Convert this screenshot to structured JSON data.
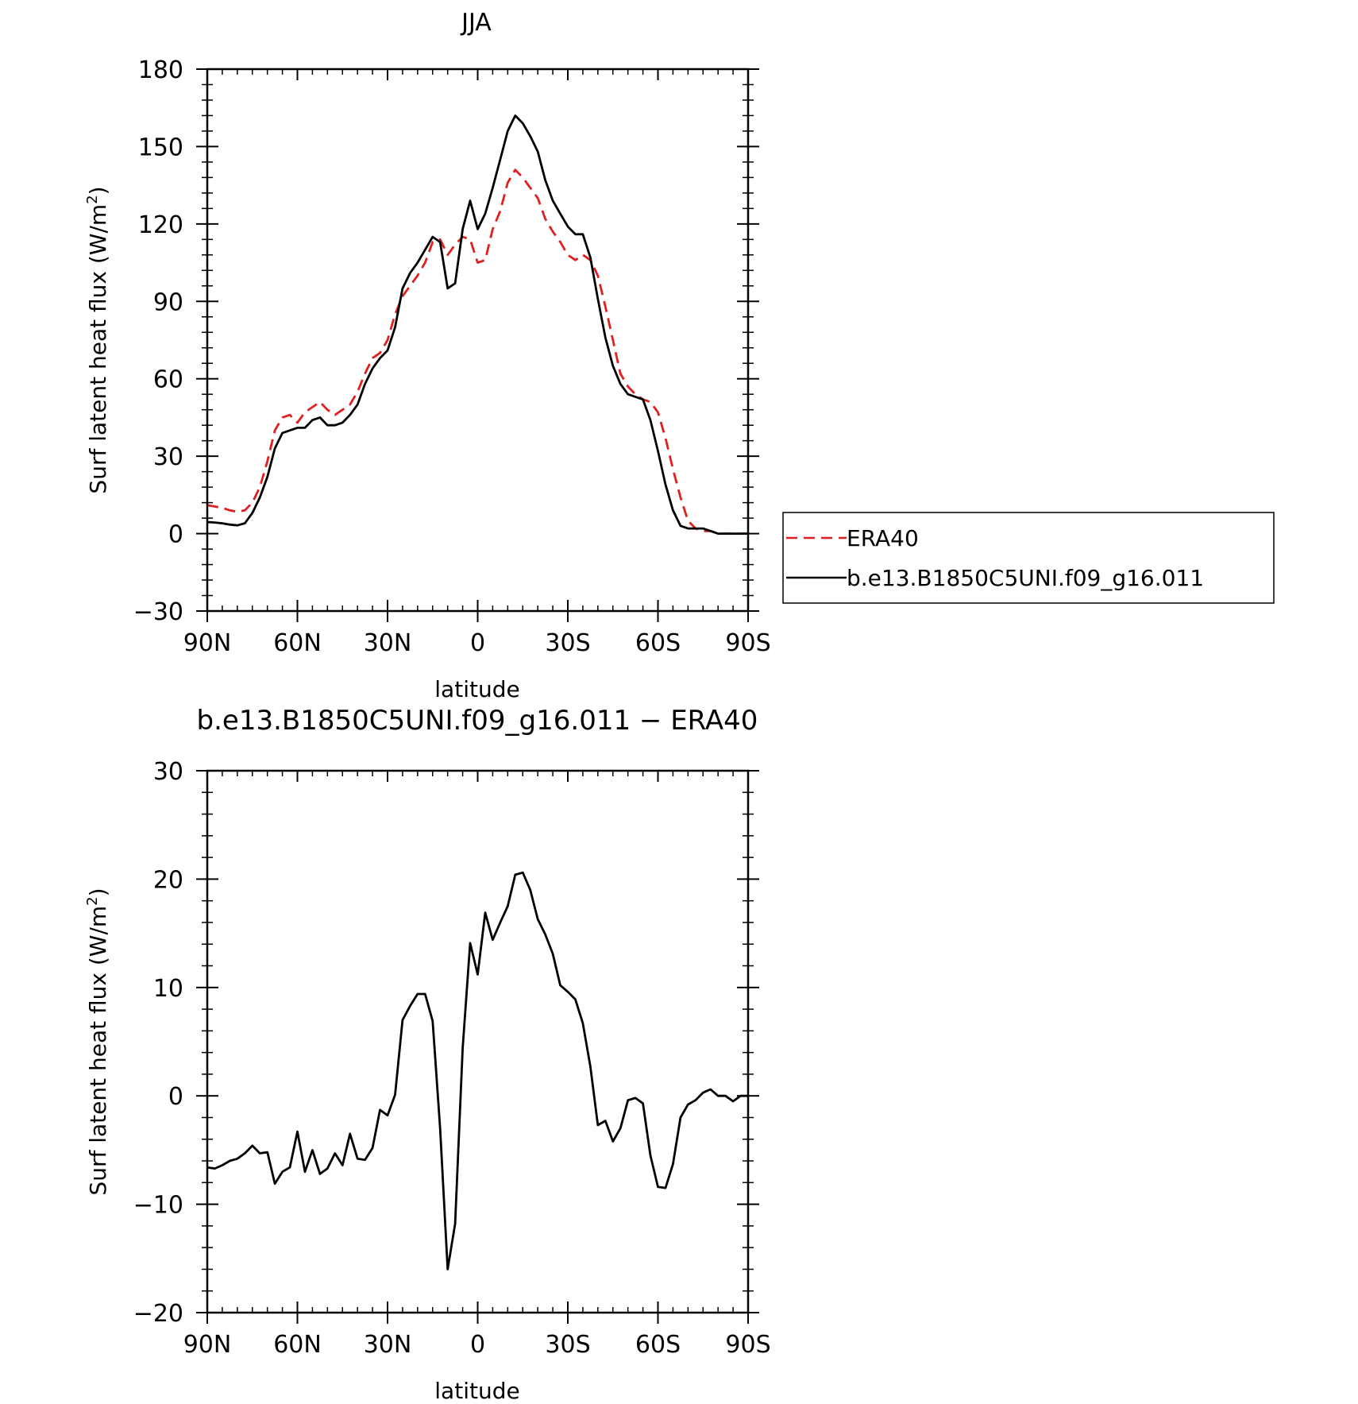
{
  "chart_data": [
    {
      "type": "line",
      "title": "JJA",
      "xlabel": "latitude",
      "ylabel": "Surf latent heat flux (W/m",
      "ylabel_sup": "2",
      "ylabel_close": ")",
      "xlim": [
        -90,
        90
      ],
      "ylim": [
        -30,
        180
      ],
      "xticks": [
        -90,
        -60,
        -30,
        0,
        30,
        60,
        90
      ],
      "xtick_labels": [
        "90N",
        "60N",
        "30N",
        "0",
        "30S",
        "60S",
        "90S"
      ],
      "yticks": [
        -30,
        0,
        30,
        60,
        90,
        120,
        150,
        180
      ],
      "ytick_labels": [
        "−30",
        "0",
        "30",
        "60",
        "90",
        "120",
        "150",
        "180"
      ],
      "grid": false,
      "legend": "right-outside",
      "series": [
        {
          "name": "ERA40",
          "color": "#e02020",
          "style": "dashed",
          "x": [
            -90,
            -87.5,
            -85,
            -82.5,
            -80,
            -77.5,
            -75,
            -72.5,
            -70,
            -67.5,
            -65,
            -62.5,
            -60,
            -57.5,
            -55,
            -52.5,
            -50,
            -47.5,
            -45,
            -42.5,
            -40,
            -37.5,
            -35,
            -32.5,
            -30,
            -27.5,
            -25,
            -22.5,
            -20,
            -17.5,
            -15,
            -12.5,
            -10,
            -7.5,
            -5,
            -2.5,
            0,
            2.5,
            5,
            7.5,
            10,
            12.5,
            15,
            17.5,
            20,
            22.5,
            25,
            27.5,
            30,
            32.5,
            35,
            37.5,
            40,
            42.5,
            45,
            47.5,
            50,
            52.5,
            55,
            57.5,
            60,
            62.5,
            65,
            67.5,
            70,
            72.5,
            75,
            77.5,
            80,
            82.5,
            85,
            87.5,
            90
          ],
          "values": [
            11,
            10.5,
            10,
            9,
            8.5,
            9,
            12,
            18,
            28,
            40,
            45,
            46,
            43,
            47,
            49,
            51,
            48,
            46,
            48,
            50,
            55,
            62,
            68,
            70,
            75,
            85,
            92,
            96,
            100,
            105,
            113,
            114,
            108,
            112,
            115,
            114,
            105,
            106,
            118,
            125,
            136,
            141,
            138,
            134,
            130,
            122,
            117,
            113,
            108,
            106,
            108,
            106,
            100,
            88,
            75,
            62,
            57,
            54,
            52,
            51,
            47,
            37,
            25,
            14,
            5,
            2,
            1,
            1,
            0,
            0,
            0,
            0,
            0
          ]
        },
        {
          "name": "b.e13.B1850C5UNI.f09_g16.011",
          "color": "#000000",
          "style": "solid",
          "x": [
            -90,
            -87.5,
            -85,
            -82.5,
            -80,
            -77.5,
            -75,
            -72.5,
            -70,
            -67.5,
            -65,
            -62.5,
            -60,
            -57.5,
            -55,
            -52.5,
            -50,
            -47.5,
            -45,
            -42.5,
            -40,
            -37.5,
            -35,
            -32.5,
            -30,
            -27.5,
            -25,
            -22.5,
            -20,
            -17.5,
            -15,
            -12.5,
            -10,
            -7.5,
            -5,
            -2.5,
            0,
            2.5,
            5,
            7.5,
            10,
            12.5,
            15,
            17.5,
            20,
            22.5,
            25,
            27.5,
            30,
            32.5,
            35,
            37.5,
            40,
            42.5,
            45,
            47.5,
            50,
            52.5,
            55,
            57.5,
            60,
            62.5,
            65,
            67.5,
            70,
            72.5,
            75,
            77.5,
            80,
            82.5,
            85,
            87.5,
            90
          ],
          "values": [
            4.5,
            4.3,
            4,
            3.5,
            3.2,
            4,
            8,
            14,
            22,
            33,
            39,
            40,
            41,
            41,
            44,
            45,
            42,
            42,
            43,
            46,
            50,
            58,
            64,
            68,
            71,
            80,
            95,
            101,
            105,
            110,
            115,
            113,
            95,
            97,
            118,
            129,
            118,
            124,
            134,
            145,
            156,
            162,
            159,
            154,
            148,
            137,
            129,
            124,
            119,
            116,
            116,
            107,
            91,
            76,
            65,
            58,
            54,
            53,
            52,
            44,
            32,
            19,
            9,
            3,
            2,
            2,
            2,
            1,
            0,
            0,
            0,
            0,
            0
          ]
        }
      ]
    },
    {
      "type": "line",
      "title": "b.e13.B1850C5UNI.f09_g16.011 − ERA40",
      "xlabel": "latitude",
      "ylabel": "Surf latent heat flux (W/m",
      "ylabel_sup": "2",
      "ylabel_close": ")",
      "xlim": [
        -90,
        90
      ],
      "ylim": [
        -20,
        30
      ],
      "xticks": [
        -90,
        -60,
        -30,
        0,
        30,
        60,
        90
      ],
      "xtick_labels": [
        "90N",
        "60N",
        "30N",
        "0",
        "30S",
        "60S",
        "90S"
      ],
      "yticks": [
        -20,
        -10,
        0,
        10,
        20,
        30
      ],
      "ytick_labels": [
        "−20",
        "−10",
        "0",
        "10",
        "20",
        "30"
      ],
      "grid": false,
      "series": [
        {
          "color": "#000000",
          "style": "solid",
          "x": [
            -90,
            -87.5,
            -85,
            -82.5,
            -80,
            -77.5,
            -75,
            -72.5,
            -70,
            -67.5,
            -65,
            -62.5,
            -60,
            -57.5,
            -55,
            -52.5,
            -50,
            -47.5,
            -45,
            -42.5,
            -40,
            -37.5,
            -35,
            -32.5,
            -30,
            -27.5,
            -25,
            -22.5,
            -20,
            -17.5,
            -15,
            -12.5,
            -10,
            -7.5,
            -5,
            -2.5,
            0,
            2.5,
            5,
            7.5,
            10,
            12.5,
            15,
            17.5,
            20,
            22.5,
            25,
            27.5,
            30,
            32.5,
            35,
            37.5,
            40,
            42.5,
            45,
            47.5,
            50,
            52.5,
            55,
            57.5,
            60,
            62.5,
            65,
            67.5,
            70,
            72.5,
            75,
            77.5,
            80,
            82.5,
            85,
            87.5,
            90
          ],
          "values": [
            -6.6,
            -6.7,
            -6.4,
            -6,
            -5.8,
            -5.3,
            -4.6,
            -5.3,
            -5.2,
            -8.1,
            -7,
            -6.6,
            -3.3,
            -7,
            -5,
            -7.2,
            -6.7,
            -5.3,
            -6.4,
            -3.5,
            -5.8,
            -5.9,
            -4.8,
            -1.3,
            -1.8,
            0.1,
            7,
            8.3,
            9.4,
            9.4,
            6.9,
            -3,
            -16,
            -11.8,
            4.4,
            14.1,
            11.2,
            16.9,
            14.4,
            16,
            17.5,
            20.4,
            20.6,
            19,
            16.3,
            14.9,
            13.1,
            10.2,
            9.6,
            8.9,
            6.7,
            2.7,
            -2.7,
            -2.3,
            -4.2,
            -3,
            -0.4,
            -0.2,
            -0.7,
            -5.5,
            -8.4,
            -8.5,
            -6.3,
            -2,
            -0.8,
            -0.4,
            0.3,
            0.6,
            0,
            0,
            -0.5,
            0,
            0
          ]
        }
      ]
    }
  ]
}
